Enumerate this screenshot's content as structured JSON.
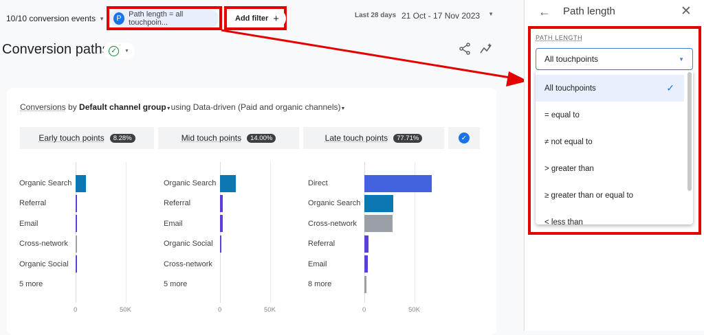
{
  "topbar": {
    "conversion_events": "10/10 conversion events",
    "filter_badge": "P",
    "filter_chip": "Path length = all touchpoin...",
    "add_filter": "Add filter",
    "date_label": "Last 28 days",
    "date_range": "21 Oct - 17 Nov 2023"
  },
  "page": {
    "title": "Conversion paths"
  },
  "card": {
    "metric": "Conversions",
    "by": " by ",
    "dimension": "Default channel group",
    "using": "using Data-driven (Paid and organic channels)"
  },
  "segments": [
    {
      "label": "Early touch points",
      "pct": "8.28%"
    },
    {
      "label": "Mid touch points",
      "pct": "14.00%"
    },
    {
      "label": "Late touch points",
      "pct": "77.71%"
    }
  ],
  "chart_data": [
    {
      "type": "bar",
      "orientation": "horizontal",
      "categories": [
        "Organic Search",
        "Referral",
        "Email",
        "Cross-network",
        "Organic Social",
        "5 more"
      ],
      "values": [
        10000,
        1500,
        1000,
        500,
        300,
        0
      ],
      "xticks": [
        "0",
        "50K"
      ],
      "xlim": [
        0,
        100000
      ],
      "grid": true
    },
    {
      "type": "bar",
      "orientation": "horizontal",
      "categories": [
        "Organic Search",
        "Referral",
        "Email",
        "Organic Social",
        "Cross-network",
        "5 more"
      ],
      "values": [
        16000,
        3000,
        3000,
        1500,
        0,
        0
      ],
      "xticks": [
        "0",
        "50K"
      ],
      "xlim": [
        0,
        100000
      ],
      "grid": true
    },
    {
      "type": "bar",
      "orientation": "horizontal",
      "categories": [
        "Direct",
        "Organic Search",
        "Cross-network",
        "Referral",
        "Email",
        "8 more"
      ],
      "values": [
        67000,
        29000,
        28000,
        4000,
        3500,
        2000
      ],
      "xticks": [
        "0",
        "50K"
      ],
      "xlim": [
        0,
        100000
      ],
      "grid": true
    }
  ],
  "colors": {
    "Direct": "#4262e0",
    "Organic Search": "#0b78b4",
    "Referral": "#5b3fd6",
    "Email": "#5b3fd6",
    "Organic Social": "#5b3fd6",
    "Cross-network": "#9aa0a6",
    "more": "#9aa0a6",
    "accent": "#1a73e8",
    "highlight": "#e50000"
  },
  "panel": {
    "title": "Path length",
    "field_label": "PATH LENGTH",
    "selected": "All touchpoints",
    "options": [
      "All touchpoints",
      "= equal to",
      "≠ not equal to",
      "> greater than",
      "≥ greater than or equal to",
      "< less than"
    ]
  }
}
